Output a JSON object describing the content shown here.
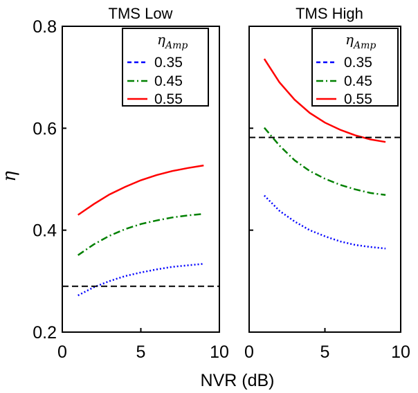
{
  "chart_data": [
    {
      "type": "line",
      "title": "TMS Low",
      "xlabel": "NVR (dB)",
      "ylabel": "η",
      "xlim": [
        0,
        10
      ],
      "ylim": [
        0.2,
        0.8
      ],
      "xticks": [
        "0",
        "5",
        "10"
      ],
      "yticks": [
        "0.2",
        "0.4",
        "0.6",
        "0.8"
      ],
      "legend": {
        "title": "η",
        "title_subscript": "Amp",
        "placement": "top-right"
      },
      "series": [
        {
          "name": "0.35",
          "color": "#0000ff",
          "dash": "dotted",
          "x": [
            1,
            2,
            3,
            4,
            5,
            6,
            7,
            8,
            9
          ],
          "y": [
            0.272,
            0.288,
            0.3,
            0.31,
            0.317,
            0.323,
            0.328,
            0.331,
            0.334
          ]
        },
        {
          "name": "0.45",
          "color": "#008000",
          "dash": "dashdot",
          "x": [
            1,
            2,
            3,
            4,
            5,
            6,
            7,
            8,
            9
          ],
          "y": [
            0.351,
            0.372,
            0.389,
            0.402,
            0.412,
            0.419,
            0.425,
            0.429,
            0.432
          ]
        },
        {
          "name": "0.55",
          "color": "#ff0000",
          "dash": "solid",
          "x": [
            1,
            2,
            3,
            4,
            5,
            6,
            7,
            8,
            9
          ],
          "y": [
            0.43,
            0.451,
            0.47,
            0.485,
            0.498,
            0.508,
            0.516,
            0.522,
            0.527
          ]
        },
        {
          "name": "",
          "color": "#000000",
          "dash": "dashed",
          "x": [
            0,
            10
          ],
          "y": [
            0.29,
            0.29
          ]
        }
      ]
    },
    {
      "type": "line",
      "title": "TMS High",
      "xlabel": "NVR (dB)",
      "ylabel": "η",
      "xlim": [
        0,
        10
      ],
      "ylim": [
        0.2,
        0.8
      ],
      "xticks": [
        "0",
        "5",
        "10"
      ],
      "yticks": [],
      "legend": {
        "title": "η",
        "title_subscript": "Amp",
        "placement": "top-right"
      },
      "series": [
        {
          "name": "0.35",
          "color": "#0000ff",
          "dash": "dotted",
          "x": [
            1,
            2,
            3,
            4,
            5,
            6,
            7,
            8,
            9
          ],
          "y": [
            0.468,
            0.438,
            0.417,
            0.4,
            0.388,
            0.378,
            0.371,
            0.367,
            0.364
          ]
        },
        {
          "name": "0.45",
          "color": "#008000",
          "dash": "dashdot",
          "x": [
            1,
            2,
            3,
            4,
            5,
            6,
            7,
            8,
            9
          ],
          "y": [
            0.601,
            0.566,
            0.537,
            0.516,
            0.501,
            0.489,
            0.48,
            0.473,
            0.469
          ]
        },
        {
          "name": "0.55",
          "color": "#ff0000",
          "dash": "solid",
          "x": [
            1,
            2,
            3,
            4,
            5,
            6,
            7,
            8,
            9
          ],
          "y": [
            0.736,
            0.69,
            0.656,
            0.63,
            0.611,
            0.597,
            0.586,
            0.578,
            0.573
          ]
        },
        {
          "name": "",
          "color": "#000000",
          "dash": "dashed",
          "x": [
            0,
            10
          ],
          "y": [
            0.582,
            0.582
          ]
        }
      ]
    }
  ]
}
